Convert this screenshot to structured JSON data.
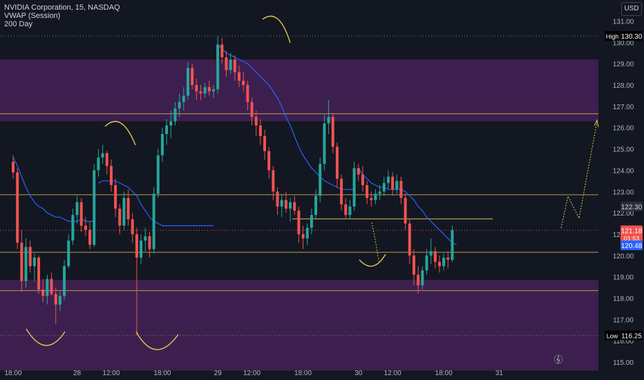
{
  "legend": {
    "symbol_line": "NVIDIA Corporation, 15, NASDAQ",
    "indicator_1": "VWAP (Session)",
    "indicator_2": "200 Day"
  },
  "currency": "USD",
  "colors": {
    "background": "#131722",
    "zone": "#3d1f4f",
    "up": "#26a69a",
    "down": "#ef5350",
    "vwap": "#2962ff",
    "level": "#b9a046",
    "annotation": "#e7c94a",
    "axis_text": "#b2b5be"
  },
  "chart_data": {
    "type": "candlestick",
    "y_axis": {
      "min": 115.0,
      "max": 131.0,
      "ticks": [
        "115.00",
        "116.00",
        "117.00",
        "118.00",
        "119.00",
        "120.00",
        "121.00",
        "122.00",
        "123.00",
        "124.00",
        "125.00",
        "126.00",
        "127.00",
        "128.00",
        "129.00",
        "130.00",
        "131.00"
      ]
    },
    "x_axis": {
      "ticks": [
        {
          "label": "18:00",
          "t": 0
        },
        {
          "label": "28",
          "t": 15
        },
        {
          "label": "12:00",
          "t": 23
        },
        {
          "label": "18:00",
          "t": 35
        },
        {
          "label": "29",
          "t": 48
        },
        {
          "label": "12:00",
          "t": 56
        },
        {
          "label": "18:00",
          "t": 68
        },
        {
          "label": "30",
          "t": 81
        },
        {
          "label": "12:00",
          "t": 89
        },
        {
          "label": "18:00",
          "t": 101
        },
        {
          "label": "31",
          "t": 114
        }
      ]
    },
    "markers": {
      "high": {
        "label": "High",
        "value": "130.30"
      },
      "low": {
        "label": "Low",
        "value": "116.25"
      },
      "last_price": {
        "value": "121.18",
        "countdown": "01:53"
      },
      "price_tag_2": {
        "value": "122.30"
      },
      "vwap_tag": {
        "value": "120.48"
      }
    },
    "zones": [
      {
        "from": 126.3,
        "to": 129.2
      },
      {
        "from": 114.6,
        "to": 118.85
      }
    ],
    "horizontal_levels": [
      126.65,
      122.85,
      120.15,
      118.35
    ],
    "support_segment": {
      "value": 121.72,
      "t_from": 65.5,
      "t_to": 112.5
    },
    "candles": [
      {
        "o": 124.4,
        "h": 124.7,
        "l": 123.6,
        "c": 123.9
      },
      {
        "o": 123.9,
        "h": 124.1,
        "l": 120.3,
        "c": 120.6
      },
      {
        "o": 120.6,
        "h": 121.2,
        "l": 118.3,
        "c": 118.8
      },
      {
        "o": 118.8,
        "h": 120.8,
        "l": 118.5,
        "c": 120.4
      },
      {
        "o": 120.4,
        "h": 120.7,
        "l": 119.2,
        "c": 119.5
      },
      {
        "o": 119.5,
        "h": 120.1,
        "l": 118.8,
        "c": 119.9
      },
      {
        "o": 119.9,
        "h": 120.0,
        "l": 118.2,
        "c": 118.4
      },
      {
        "o": 118.4,
        "h": 118.9,
        "l": 117.8,
        "c": 118.1
      },
      {
        "o": 118.1,
        "h": 119.1,
        "l": 117.7,
        "c": 118.9
      },
      {
        "o": 118.9,
        "h": 119.2,
        "l": 118.1,
        "c": 118.2
      },
      {
        "o": 118.2,
        "h": 118.5,
        "l": 116.8,
        "c": 117.7
      },
      {
        "o": 117.7,
        "h": 118.3,
        "l": 117.4,
        "c": 118.1
      },
      {
        "o": 118.1,
        "h": 119.8,
        "l": 117.9,
        "c": 119.5
      },
      {
        "o": 119.5,
        "h": 121.0,
        "l": 119.4,
        "c": 120.7
      },
      {
        "o": 120.7,
        "h": 122.2,
        "l": 120.5,
        "c": 121.9
      },
      {
        "o": 121.9,
        "h": 122.8,
        "l": 121.5,
        "c": 122.5
      },
      {
        "o": 122.5,
        "h": 122.7,
        "l": 121.1,
        "c": 121.4
      },
      {
        "o": 121.4,
        "h": 121.8,
        "l": 120.9,
        "c": 121.2
      },
      {
        "o": 121.2,
        "h": 121.6,
        "l": 120.3,
        "c": 120.5
      },
      {
        "o": 120.5,
        "h": 124.3,
        "l": 120.4,
        "c": 124.0
      },
      {
        "o": 124.0,
        "h": 125.0,
        "l": 123.7,
        "c": 124.6
      },
      {
        "o": 124.6,
        "h": 125.2,
        "l": 124.3,
        "c": 124.8
      },
      {
        "o": 124.8,
        "h": 124.9,
        "l": 123.8,
        "c": 124.2
      },
      {
        "o": 124.2,
        "h": 124.5,
        "l": 123.0,
        "c": 123.3
      },
      {
        "o": 123.3,
        "h": 123.6,
        "l": 121.8,
        "c": 122.2
      },
      {
        "o": 122.2,
        "h": 122.4,
        "l": 121.0,
        "c": 121.4
      },
      {
        "o": 121.4,
        "h": 123.0,
        "l": 121.2,
        "c": 122.7
      },
      {
        "o": 122.7,
        "h": 123.1,
        "l": 121.4,
        "c": 121.7
      },
      {
        "o": 121.7,
        "h": 122.0,
        "l": 120.6,
        "c": 121.0
      },
      {
        "o": 121.0,
        "h": 121.3,
        "l": 116.25,
        "c": 119.9
      },
      {
        "o": 119.9,
        "h": 121.0,
        "l": 119.6,
        "c": 120.7
      },
      {
        "o": 120.7,
        "h": 121.3,
        "l": 120.2,
        "c": 120.9
      },
      {
        "o": 120.9,
        "h": 121.1,
        "l": 119.9,
        "c": 120.3
      },
      {
        "o": 120.3,
        "h": 123.2,
        "l": 120.1,
        "c": 122.9
      },
      {
        "o": 122.9,
        "h": 125.0,
        "l": 122.7,
        "c": 124.7
      },
      {
        "o": 124.7,
        "h": 126.0,
        "l": 124.4,
        "c": 125.7
      },
      {
        "o": 125.7,
        "h": 126.4,
        "l": 125.2,
        "c": 126.1
      },
      {
        "o": 126.1,
        "h": 126.8,
        "l": 125.5,
        "c": 126.3
      },
      {
        "o": 126.3,
        "h": 127.2,
        "l": 126.1,
        "c": 126.9
      },
      {
        "o": 126.9,
        "h": 127.6,
        "l": 126.5,
        "c": 127.2
      },
      {
        "o": 127.2,
        "h": 127.9,
        "l": 126.8,
        "c": 127.5
      },
      {
        "o": 127.5,
        "h": 129.1,
        "l": 127.3,
        "c": 128.8
      },
      {
        "o": 128.8,
        "h": 129.0,
        "l": 127.8,
        "c": 128.0
      },
      {
        "o": 128.0,
        "h": 128.3,
        "l": 127.3,
        "c": 127.7
      },
      {
        "o": 127.7,
        "h": 128.0,
        "l": 127.3,
        "c": 127.6
      },
      {
        "o": 127.6,
        "h": 128.1,
        "l": 127.4,
        "c": 127.9
      },
      {
        "o": 127.9,
        "h": 128.2,
        "l": 127.5,
        "c": 127.7
      },
      {
        "o": 127.7,
        "h": 128.0,
        "l": 127.4,
        "c": 127.8
      },
      {
        "o": 127.8,
        "h": 130.3,
        "l": 127.6,
        "c": 129.9
      },
      {
        "o": 129.9,
        "h": 130.2,
        "l": 129.0,
        "c": 129.3
      },
      {
        "o": 129.3,
        "h": 129.6,
        "l": 128.4,
        "c": 128.7
      },
      {
        "o": 128.7,
        "h": 129.5,
        "l": 128.5,
        "c": 129.2
      },
      {
        "o": 129.2,
        "h": 129.4,
        "l": 128.2,
        "c": 128.6
      },
      {
        "o": 128.6,
        "h": 128.9,
        "l": 127.9,
        "c": 128.2
      },
      {
        "o": 128.2,
        "h": 128.6,
        "l": 127.7,
        "c": 128.0
      },
      {
        "o": 128.0,
        "h": 128.2,
        "l": 126.8,
        "c": 127.2
      },
      {
        "o": 127.2,
        "h": 127.4,
        "l": 126.1,
        "c": 126.5
      },
      {
        "o": 126.5,
        "h": 126.8,
        "l": 125.6,
        "c": 126.1
      },
      {
        "o": 126.1,
        "h": 126.4,
        "l": 125.2,
        "c": 125.6
      },
      {
        "o": 125.6,
        "h": 125.9,
        "l": 124.5,
        "c": 124.9
      },
      {
        "o": 124.9,
        "h": 125.1,
        "l": 123.6,
        "c": 124.0
      },
      {
        "o": 124.0,
        "h": 124.2,
        "l": 122.6,
        "c": 123.0
      },
      {
        "o": 123.0,
        "h": 123.2,
        "l": 121.9,
        "c": 122.3
      },
      {
        "o": 122.3,
        "h": 122.9,
        "l": 121.8,
        "c": 122.6
      },
      {
        "o": 122.6,
        "h": 123.0,
        "l": 122.0,
        "c": 122.2
      },
      {
        "o": 122.2,
        "h": 122.7,
        "l": 121.6,
        "c": 122.5
      },
      {
        "o": 122.5,
        "h": 122.8,
        "l": 121.9,
        "c": 122.1
      },
      {
        "o": 122.1,
        "h": 122.3,
        "l": 120.6,
        "c": 121.0
      },
      {
        "o": 121.0,
        "h": 121.4,
        "l": 120.3,
        "c": 120.8
      },
      {
        "o": 120.8,
        "h": 121.5,
        "l": 120.5,
        "c": 121.3
      },
      {
        "o": 121.3,
        "h": 122.2,
        "l": 121.0,
        "c": 121.9
      },
      {
        "o": 121.9,
        "h": 123.1,
        "l": 121.7,
        "c": 122.8
      },
      {
        "o": 122.8,
        "h": 124.6,
        "l": 122.5,
        "c": 124.3
      },
      {
        "o": 124.3,
        "h": 126.6,
        "l": 124.0,
        "c": 126.2
      },
      {
        "o": 126.2,
        "h": 127.3,
        "l": 125.7,
        "c": 126.5
      },
      {
        "o": 126.5,
        "h": 126.7,
        "l": 124.8,
        "c": 125.1
      },
      {
        "o": 125.1,
        "h": 125.3,
        "l": 123.2,
        "c": 123.6
      },
      {
        "o": 123.6,
        "h": 123.8,
        "l": 122.1,
        "c": 122.4
      },
      {
        "o": 122.4,
        "h": 122.7,
        "l": 121.7,
        "c": 121.9
      },
      {
        "o": 121.9,
        "h": 122.6,
        "l": 121.7,
        "c": 122.3
      },
      {
        "o": 122.3,
        "h": 124.4,
        "l": 122.1,
        "c": 124.1
      },
      {
        "o": 124.1,
        "h": 124.3,
        "l": 123.5,
        "c": 123.8
      },
      {
        "o": 123.8,
        "h": 124.2,
        "l": 123.0,
        "c": 123.3
      },
      {
        "o": 123.3,
        "h": 123.5,
        "l": 122.4,
        "c": 122.7
      },
      {
        "o": 122.7,
        "h": 123.0,
        "l": 122.3,
        "c": 122.6
      },
      {
        "o": 122.6,
        "h": 123.1,
        "l": 122.4,
        "c": 122.9
      },
      {
        "o": 122.9,
        "h": 123.3,
        "l": 122.6,
        "c": 123.0
      },
      {
        "o": 123.0,
        "h": 123.7,
        "l": 122.8,
        "c": 123.4
      },
      {
        "o": 123.4,
        "h": 124.0,
        "l": 123.1,
        "c": 123.7
      },
      {
        "o": 123.7,
        "h": 123.9,
        "l": 122.8,
        "c": 123.1
      },
      {
        "o": 123.1,
        "h": 123.8,
        "l": 122.9,
        "c": 123.5
      },
      {
        "o": 123.5,
        "h": 123.7,
        "l": 122.4,
        "c": 122.7
      },
      {
        "o": 122.7,
        "h": 122.9,
        "l": 121.2,
        "c": 121.5
      },
      {
        "o": 121.5,
        "h": 121.7,
        "l": 119.6,
        "c": 120.0
      },
      {
        "o": 120.0,
        "h": 120.3,
        "l": 118.6,
        "c": 119.1
      },
      {
        "o": 119.1,
        "h": 119.5,
        "l": 118.2,
        "c": 118.6
      },
      {
        "o": 118.6,
        "h": 119.5,
        "l": 118.4,
        "c": 119.3
      },
      {
        "o": 119.3,
        "h": 120.3,
        "l": 119.1,
        "c": 120.0
      },
      {
        "o": 120.0,
        "h": 120.8,
        "l": 119.6,
        "c": 120.2
      },
      {
        "o": 120.2,
        "h": 120.4,
        "l": 119.4,
        "c": 119.7
      },
      {
        "o": 119.7,
        "h": 120.0,
        "l": 119.2,
        "c": 119.5
      },
      {
        "o": 119.5,
        "h": 120.1,
        "l": 119.3,
        "c": 119.9
      },
      {
        "o": 119.9,
        "h": 120.2,
        "l": 119.4,
        "c": 119.8
      },
      {
        "o": 119.8,
        "h": 121.4,
        "l": 119.7,
        "c": 121.18
      }
    ],
    "vwap": {
      "segments": [
        {
          "t_from": 0,
          "values": [
            124.6,
            124.2,
            123.7,
            123.2,
            122.8,
            122.5,
            122.3,
            122.2,
            122.0,
            121.9,
            121.8,
            121.8,
            121.7,
            121.6,
            121.6,
            121.6,
            121.7,
            121.6,
            121.6,
            121.6
          ]
        },
        {
          "t_from": 20,
          "values": [
            123.4,
            123.5,
            123.5,
            123.5,
            123.5,
            123.4,
            123.3,
            123.2,
            123.0,
            122.8,
            122.4,
            122.1,
            121.8,
            121.6,
            121.5,
            121.4,
            121.4,
            121.4,
            121.4,
            121.4,
            121.4,
            121.4,
            121.4,
            121.4,
            121.4,
            121.4,
            121.4,
            121.4
          ]
        },
        {
          "t_from": 48,
          "values": [
            129.9,
            129.7,
            129.5,
            129.4,
            129.3,
            129.2,
            129.1,
            129.0,
            128.8,
            128.6,
            128.4,
            128.2,
            128.0,
            127.7,
            127.4,
            127.0,
            126.5,
            126.1,
            125.6,
            125.1,
            124.7,
            124.4,
            124.1,
            123.9,
            123.7,
            123.5,
            123.4,
            123.3,
            123.2,
            123.1,
            123.1,
            123.1,
            123.1
          ]
        },
        {
          "t_from": 81,
          "values": [
            124.1,
            123.8,
            123.6,
            123.4,
            123.3,
            123.2,
            123.2,
            123.1,
            123.1,
            123.1,
            123.1,
            123.0,
            122.8,
            122.6,
            122.3,
            122.1,
            121.8,
            121.6,
            121.4,
            121.2,
            121.0,
            120.8,
            120.6,
            120.5
          ]
        }
      ]
    }
  }
}
